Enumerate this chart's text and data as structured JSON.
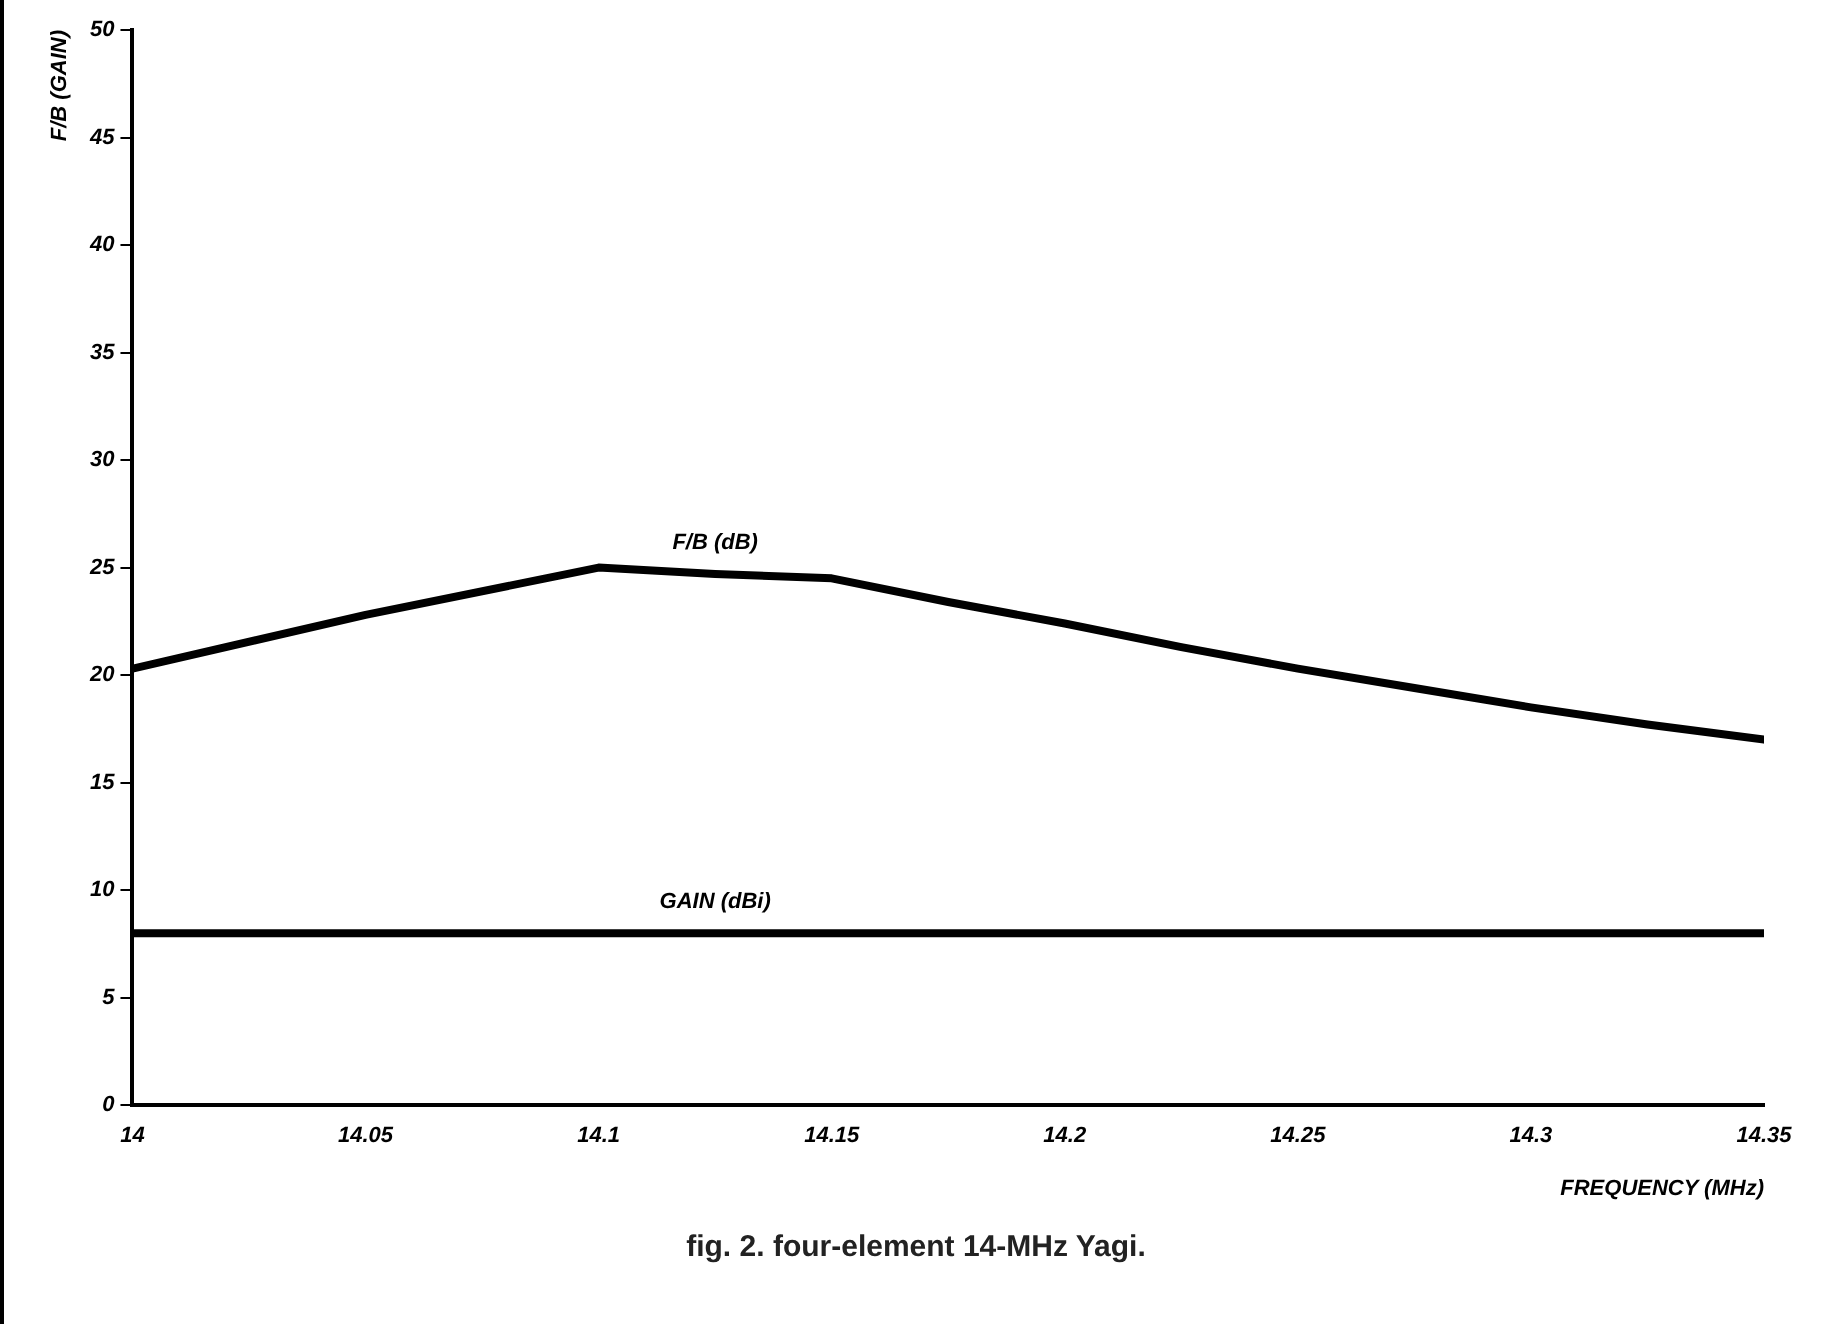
{
  "chart_data": {
    "type": "line",
    "xlabel": "FREQUENCY (MHz)",
    "ylabel": "F/B (GAIN)",
    "x": [
      14,
      14.05,
      14.1,
      14.125,
      14.15,
      14.175,
      14.2,
      14.225,
      14.25,
      14.275,
      14.3,
      14.325,
      14.35
    ],
    "series": [
      {
        "name": "F/B (dB)",
        "color": "#000000",
        "values": [
          20.3,
          22.8,
          25,
          24.7,
          24.5,
          23.4,
          22.4,
          21.3,
          20.3,
          19.4,
          18.5,
          17.7,
          17
        ]
      },
      {
        "name": "GAIN (dBi)",
        "color": "#000000",
        "values": [
          8,
          8,
          8,
          8,
          8,
          8,
          8,
          8,
          8,
          8,
          8,
          8,
          8
        ]
      }
    ],
    "xlim": [
      14,
      14.35
    ],
    "xticks": [
      14,
      14.05,
      14.1,
      14.15,
      14.2,
      14.25,
      14.3,
      14.35
    ],
    "ylim": [
      0,
      50
    ],
    "yticks": [
      0,
      5,
      10,
      15,
      20,
      25,
      30,
      35,
      40,
      45,
      50
    ],
    "grid": false,
    "legend": false,
    "marker": "none",
    "line_style": "solid",
    "annotations": [
      "fig. 2. four-element 14-MHz Yagi."
    ]
  }
}
